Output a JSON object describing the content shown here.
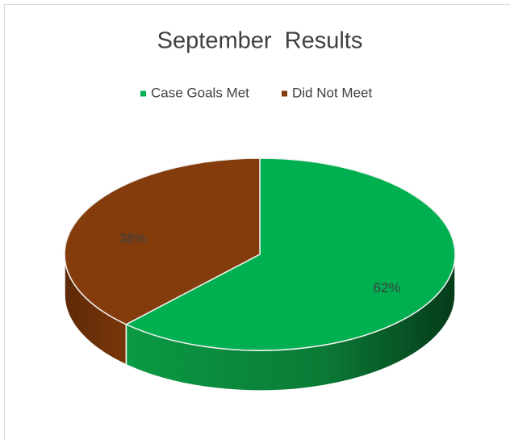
{
  "chart_data": {
    "type": "pie",
    "title": "September  Results",
    "categories": [
      "Case Goals Met",
      "Did Not Meet"
    ],
    "values": [
      62,
      38
    ],
    "value_labels": [
      "62%",
      "38%"
    ],
    "colors": [
      "#00b050",
      "#843c0c"
    ],
    "legend": "top"
  }
}
